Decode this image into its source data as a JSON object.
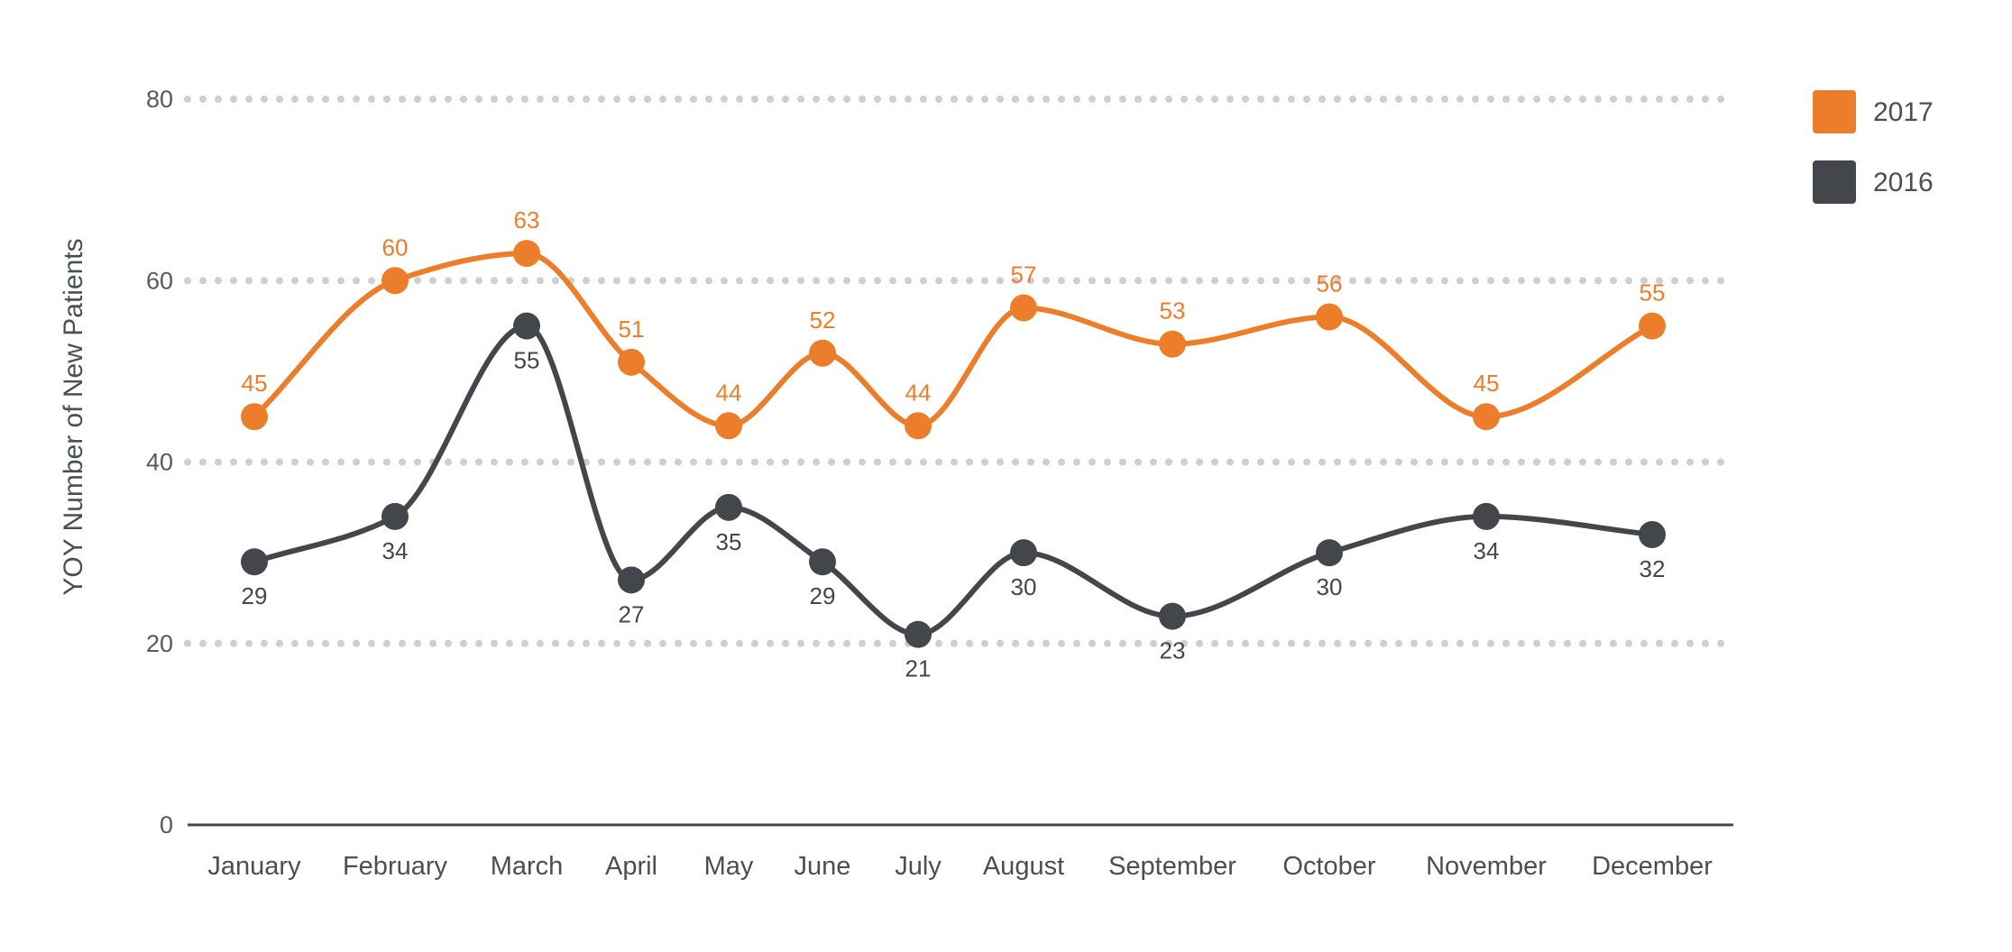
{
  "chart_data": {
    "type": "line",
    "ylabel": "YOY Number of New Patients",
    "xlabel": "",
    "ylim": [
      0,
      80
    ],
    "yticks": [
      0,
      20,
      40,
      60,
      80
    ],
    "grid": "dotted horizontal",
    "smooth": true,
    "legend_position": "top-right",
    "categories": [
      "January",
      "February",
      "March",
      "April",
      "May",
      "June",
      "July",
      "August",
      "September",
      "October",
      "November",
      "December"
    ],
    "series": [
      {
        "name": "2017",
        "color": "#ec7d2b",
        "label_position": "above",
        "values": [
          45,
          60,
          63,
          51,
          44,
          52,
          44,
          57,
          53,
          56,
          45,
          55
        ]
      },
      {
        "name": "2016",
        "color": "#43474b",
        "label_position": "below",
        "values": [
          29,
          34,
          55,
          27,
          35,
          29,
          21,
          30,
          23,
          30,
          34,
          32
        ]
      }
    ]
  }
}
